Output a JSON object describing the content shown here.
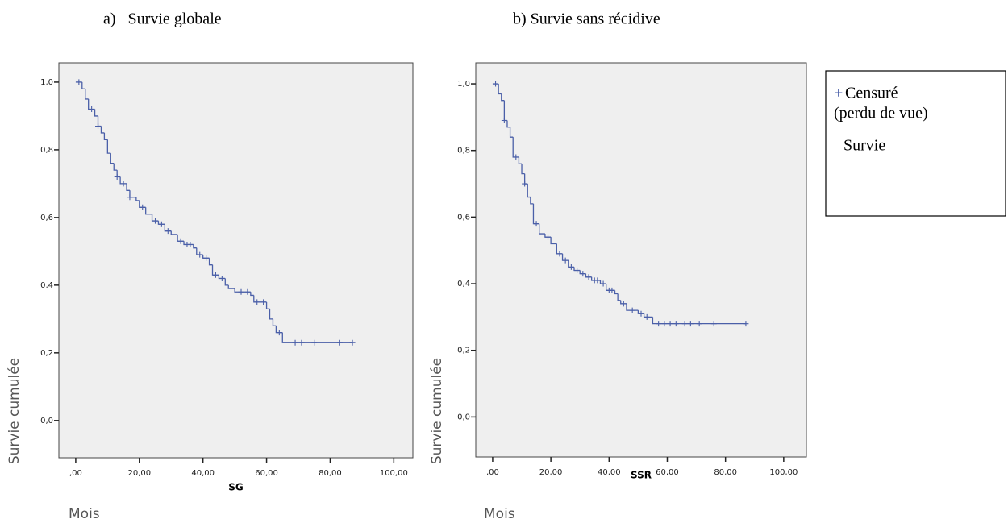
{
  "chart_data": [
    {
      "type": "step",
      "title": "a)   Survie globale",
      "xlabel": "SG",
      "ylabel": "Survie cumulée",
      "unit_label": "Mois",
      "xlim": [
        -5.3,
        106
      ],
      "ylim": [
        -0.11,
        1.057
      ],
      "xticks": [
        {
          "value": 0,
          "label": ",00"
        },
        {
          "value": 20,
          "label": "20,00"
        },
        {
          "value": 40,
          "label": "40,00"
        },
        {
          "value": 60,
          "label": "60,00"
        },
        {
          "value": 80,
          "label": "80,00"
        },
        {
          "value": 100,
          "label": "100,00"
        }
      ],
      "yticks": [
        {
          "value": 0,
          "label": "0,0"
        },
        {
          "value": 0.2,
          "label": "0,2"
        },
        {
          "value": 0.4,
          "label": "0,4"
        },
        {
          "value": 0.6,
          "label": "0,6"
        },
        {
          "value": 0.8,
          "label": "0,8"
        },
        {
          "value": 1,
          "label": "1,0"
        }
      ],
      "color": "#4a5fa8",
      "series": [
        {
          "x": [
            0,
            2,
            3,
            4,
            6,
            7,
            8,
            9,
            10,
            11,
            12,
            13,
            14,
            16,
            17,
            19,
            20,
            22,
            24,
            26,
            28,
            30,
            32,
            34,
            37,
            38,
            40,
            42,
            43,
            45,
            47,
            48,
            50,
            55,
            56,
            60,
            61,
            62,
            63,
            65,
            87
          ],
          "y": [
            1.0,
            0.98,
            0.95,
            0.92,
            0.9,
            0.87,
            0.85,
            0.83,
            0.79,
            0.76,
            0.74,
            0.72,
            0.7,
            0.68,
            0.66,
            0.65,
            0.63,
            0.61,
            0.59,
            0.58,
            0.56,
            0.55,
            0.53,
            0.52,
            0.51,
            0.49,
            0.48,
            0.46,
            0.43,
            0.42,
            0.4,
            0.39,
            0.38,
            0.37,
            0.35,
            0.33,
            0.3,
            0.28,
            0.26,
            0.23,
            0.23
          ]
        }
      ],
      "censored": {
        "x": [
          1,
          5,
          7,
          13,
          15,
          17,
          21,
          25,
          27,
          29,
          33,
          35,
          36,
          39,
          41,
          44,
          46,
          52,
          54,
          57,
          59,
          64,
          69,
          71,
          75,
          83,
          87
        ],
        "y": [
          1.0,
          0.92,
          0.87,
          0.72,
          0.7,
          0.66,
          0.63,
          0.59,
          0.58,
          0.56,
          0.53,
          0.52,
          0.52,
          0.49,
          0.48,
          0.43,
          0.42,
          0.38,
          0.38,
          0.35,
          0.35,
          0.26,
          0.23,
          0.23,
          0.23,
          0.23,
          0.23
        ]
      }
    },
    {
      "type": "step",
      "title": "b) Survie sans récidive",
      "xlabel": "SSR",
      "ylabel": "Survie cumulée",
      "unit_label": "Mois",
      "xlim": [
        -5.8,
        107.8
      ],
      "ylim": [
        -0.12,
        1.063
      ],
      "xticks": [
        {
          "value": 0,
          "label": ",00"
        },
        {
          "value": 20,
          "label": "20,00"
        },
        {
          "value": 40,
          "label": "40,00"
        },
        {
          "value": 60,
          "label": "60,00"
        },
        {
          "value": 80,
          "label": "80,00"
        },
        {
          "value": 100,
          "label": "100,00"
        }
      ],
      "yticks": [
        {
          "value": 0,
          "label": "0,0"
        },
        {
          "value": 0.2,
          "label": "0,2"
        },
        {
          "value": 0.4,
          "label": "0,4"
        },
        {
          "value": 0.6,
          "label": "0,6"
        },
        {
          "value": 0.8,
          "label": "0,8"
        },
        {
          "value": 1,
          "label": "1,0"
        }
      ],
      "color": "#4a5fa8",
      "series": [
        {
          "x": [
            0,
            2,
            3,
            4,
            5,
            6,
            7,
            9,
            10,
            11,
            12,
            13,
            14,
            16,
            18,
            20,
            22,
            24,
            26,
            28,
            30,
            32,
            34,
            37,
            39,
            42,
            43,
            44,
            46,
            50,
            52,
            55,
            87
          ],
          "y": [
            1.0,
            0.97,
            0.95,
            0.89,
            0.87,
            0.84,
            0.78,
            0.76,
            0.73,
            0.7,
            0.66,
            0.64,
            0.58,
            0.55,
            0.54,
            0.52,
            0.49,
            0.47,
            0.45,
            0.44,
            0.43,
            0.42,
            0.41,
            0.4,
            0.38,
            0.37,
            0.35,
            0.34,
            0.32,
            0.31,
            0.3,
            0.28,
            0.28
          ]
        }
      ],
      "censored": {
        "x": [
          1,
          4,
          8,
          11,
          15,
          19,
          23,
          25,
          27,
          29,
          31,
          33,
          35,
          36,
          38,
          40,
          41,
          45,
          48,
          51,
          53,
          57,
          59,
          61,
          63,
          66,
          68,
          71,
          76,
          87
        ],
        "y": [
          1.0,
          0.89,
          0.78,
          0.7,
          0.58,
          0.54,
          0.49,
          0.47,
          0.45,
          0.44,
          0.43,
          0.42,
          0.41,
          0.41,
          0.4,
          0.38,
          0.38,
          0.34,
          0.32,
          0.31,
          0.3,
          0.28,
          0.28,
          0.28,
          0.28,
          0.28,
          0.28,
          0.28,
          0.28,
          0.28
        ]
      }
    }
  ],
  "legend": {
    "entries": [
      {
        "symbol": "+",
        "label": "Censuré",
        "sublabel": "(perdu de vue)"
      },
      {
        "symbol": "_",
        "label": "Survie"
      }
    ]
  }
}
